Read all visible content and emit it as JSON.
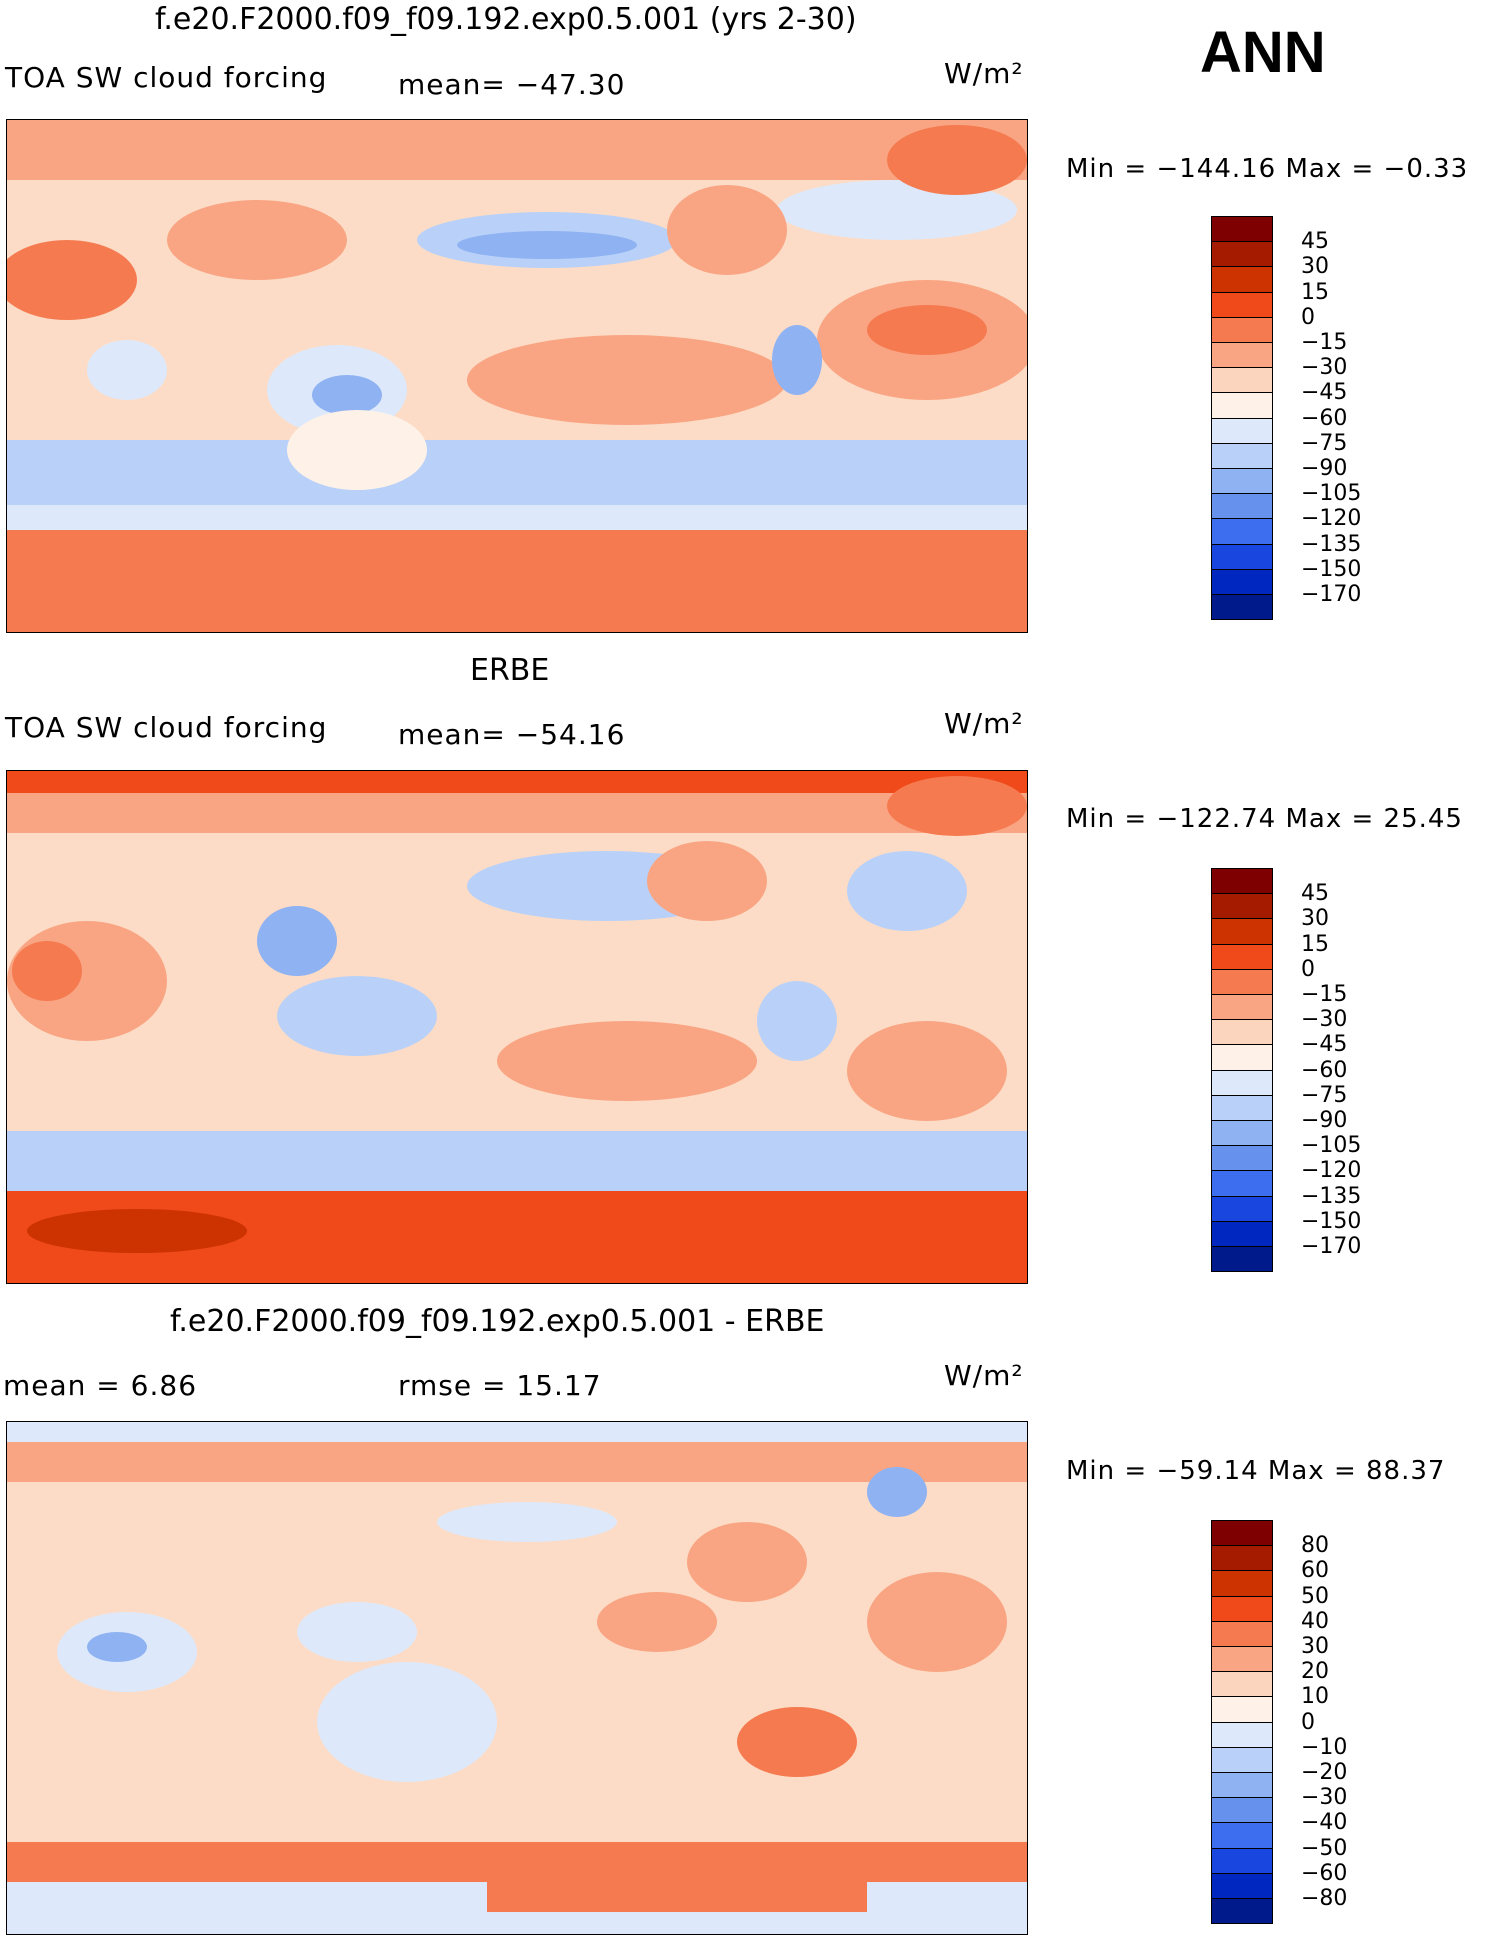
{
  "header": {
    "season": "ANN"
  },
  "panels": [
    {
      "title": "f.e20.F2000.f09_f09.192.exp0.5.001 (yrs 2-30)",
      "left_text": "TOA SW cloud forcing",
      "center_text": "mean= −47.30",
      "units": "W/m²",
      "minmax": "Min = −144.16 Max =   −0.33",
      "colorbar": {
        "labels": [
          "45",
          "30",
          "15",
          "0",
          "−15",
          "−30",
          "−45",
          "−60",
          "−75",
          "−90",
          "−105",
          "−120",
          "−135",
          "−150",
          "−170"
        ],
        "colors": [
          "#7f0000",
          "#a51b00",
          "#cc3300",
          "#f04a1a",
          "#f57a50",
          "#f9a583",
          "#fcd5bf",
          "#fef2e8",
          "#dde9fb",
          "#b9d1f8",
          "#8fb2f2",
          "#6692ee",
          "#3d6ef0",
          "#1a46e0",
          "#0028c0",
          "#001a8c"
        ]
      }
    },
    {
      "title": "ERBE",
      "left_text": "TOA SW cloud forcing",
      "center_text": "mean= −54.16",
      "units": "W/m²",
      "minmax": "Min = −122.74 Max =   25.45",
      "colorbar": {
        "labels": [
          "45",
          "30",
          "15",
          "0",
          "−15",
          "−30",
          "−45",
          "−60",
          "−75",
          "−90",
          "−105",
          "−120",
          "−135",
          "−150",
          "−170"
        ],
        "colors": [
          "#7f0000",
          "#a51b00",
          "#cc3300",
          "#f04a1a",
          "#f57a50",
          "#f9a583",
          "#fcd5bf",
          "#fef2e8",
          "#dde9fb",
          "#b9d1f8",
          "#8fb2f2",
          "#6692ee",
          "#3d6ef0",
          "#1a46e0",
          "#0028c0",
          "#001a8c"
        ]
      }
    },
    {
      "title": "f.e20.F2000.f09_f09.192.exp0.5.001 - ERBE",
      "left_text": "mean =    6.86",
      "center_text": "rmse =   15.17",
      "units": "W/m²",
      "minmax": "Min = −59.14 Max =   88.37",
      "colorbar": {
        "labels": [
          "80",
          "60",
          "50",
          "40",
          "30",
          "20",
          "10",
          "0",
          "−10",
          "−20",
          "−30",
          "−40",
          "−50",
          "−60",
          "−80"
        ],
        "colors": [
          "#7f0000",
          "#a51b00",
          "#cc3300",
          "#f04a1a",
          "#f57a50",
          "#f9a583",
          "#fcd5bf",
          "#fef2e8",
          "#dde9fb",
          "#b9d1f8",
          "#8fb2f2",
          "#6692ee",
          "#3d6ef0",
          "#1a46e0",
          "#0028c0",
          "#001a8c"
        ]
      }
    }
  ]
}
